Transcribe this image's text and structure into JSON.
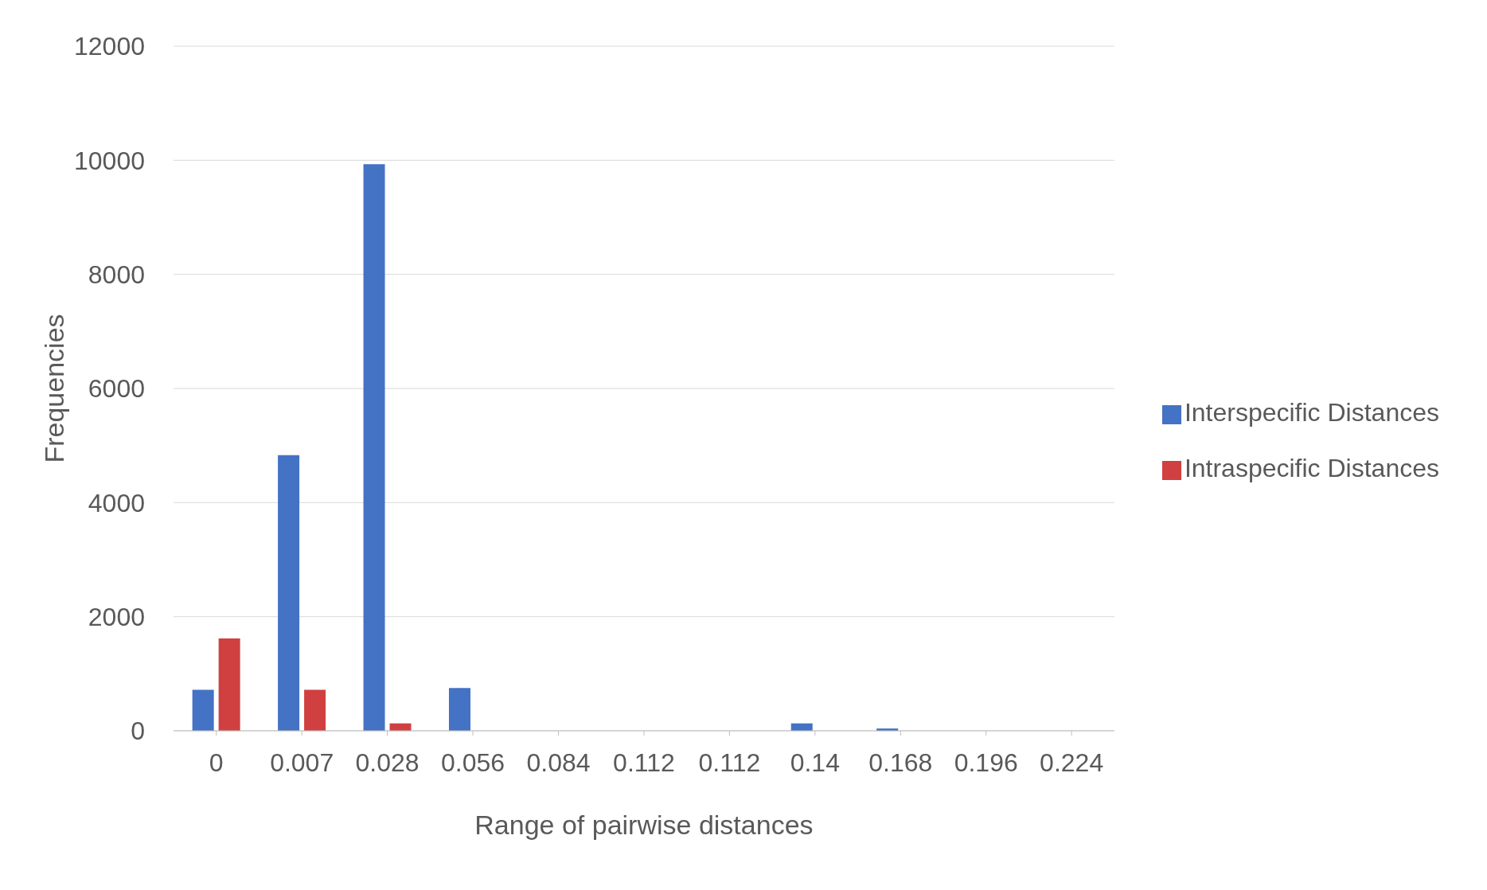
{
  "chart_data": {
    "type": "bar",
    "xlabel": "Range of pairwise distances",
    "ylabel": "Frequencies",
    "categories": [
      "0",
      "0.007",
      "0.028",
      "0.056",
      "0.084",
      "0.112",
      "0.112",
      "0.14",
      "0.168",
      "0.196",
      "0.224"
    ],
    "series": [
      {
        "name": "Interspecific Distances",
        "color": "#4472c4",
        "values": [
          720,
          4830,
          9930,
          750,
          0,
          0,
          null,
          130,
          40,
          0,
          0
        ]
      },
      {
        "name": "Intraspecific Distances",
        "color": "#d04040",
        "values": [
          1620,
          720,
          130,
          null,
          0,
          0,
          null,
          null,
          0,
          0,
          0
        ]
      }
    ],
    "ylim": [
      0,
      12000
    ],
    "yticks": [
      0,
      2000,
      4000,
      6000,
      8000,
      10000,
      12000
    ],
    "grid": "y",
    "legend": "right"
  }
}
